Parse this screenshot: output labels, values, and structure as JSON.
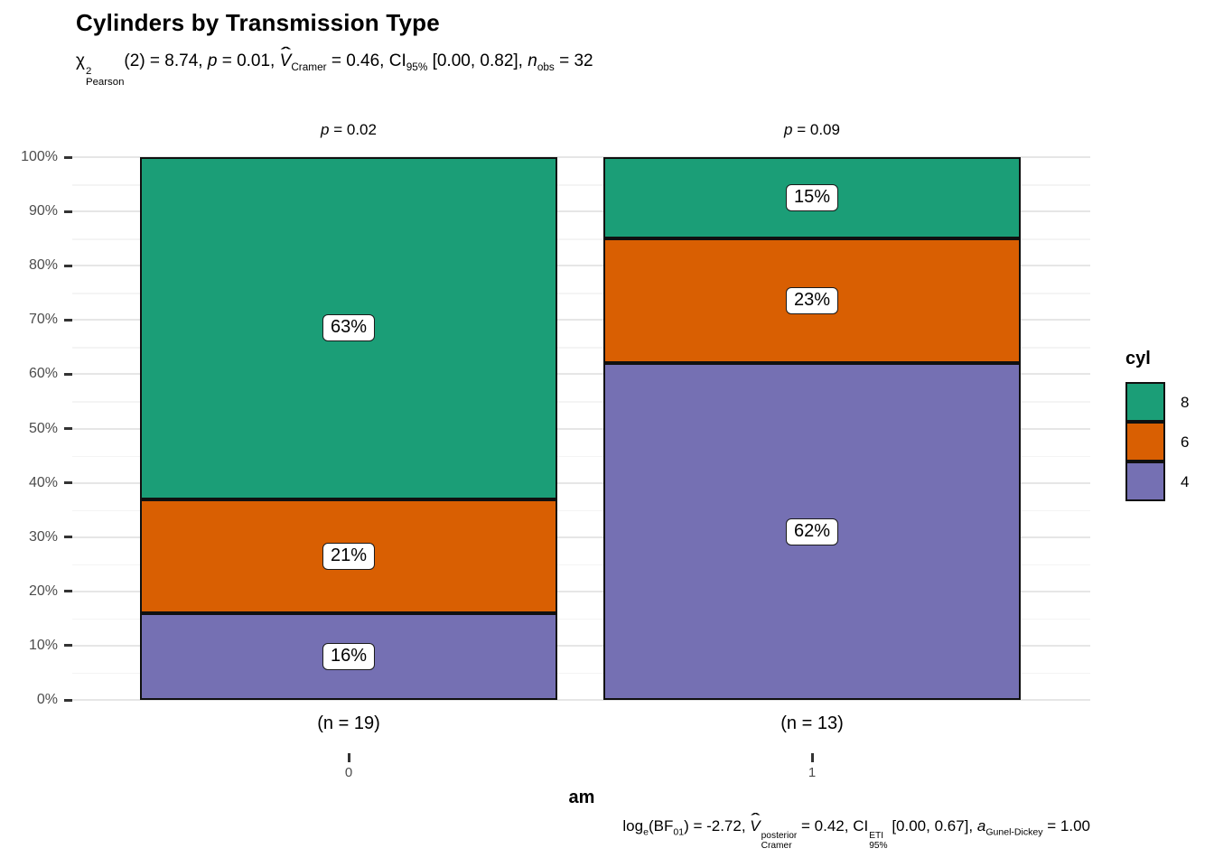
{
  "title": "Cylinders by Transmission Type",
  "subtitle_segments": [
    {
      "t": "χ",
      "sup": "2",
      "sub": "Pearson"
    },
    {
      "t": "(2) = 8.74, "
    },
    {
      "t": "p",
      "i": true
    },
    {
      "t": " = 0.01, "
    },
    {
      "t": "V",
      "i": true,
      "hat": true,
      "sub": "Cramer"
    },
    {
      "t": " = 0.46, CI",
      "sub": "95%"
    },
    {
      "t": " [0.00, 0.82], "
    },
    {
      "t": "n",
      "i": true,
      "sub": "obs"
    },
    {
      "t": " = 32"
    }
  ],
  "caption_segments": [
    {
      "t": "log",
      "sub": "e"
    },
    {
      "t": "(BF",
      "sub": "01"
    },
    {
      "t": ") = -2.72, "
    },
    {
      "t": "V",
      "i": true,
      "hat": true,
      "sup": "posterior",
      "sub": "Cramer"
    },
    {
      "t": " = 0.42, CI",
      "sup": "ETI",
      "sub": "95%"
    },
    {
      "t": " [0.00, 0.67], "
    },
    {
      "t": "a",
      "i": true,
      "sub": "Gunel-Dickey"
    },
    {
      "t": " = 1.00"
    }
  ],
  "colors": {
    "background": "#ffffff",
    "grid_major": "#e6e6e6",
    "grid_minor": "#f4f4f4",
    "axis_text": "#4d4d4d",
    "tick_mark": "#333333",
    "bar_border": "#101010",
    "label_box_bg": "#ffffff",
    "label_box_border": "#1a1a1a"
  },
  "chart_data": {
    "type": "bar",
    "stacked": true,
    "percent": true,
    "title": "Cylinders by Transmission Type",
    "xlabel": "am",
    "ylabel": "",
    "categories": [
      "0",
      "1"
    ],
    "series": [
      {
        "name": "8",
        "color": "#1B9E77",
        "values": [
          63,
          15
        ]
      },
      {
        "name": "6",
        "color": "#D95F02",
        "values": [
          21,
          23
        ]
      },
      {
        "name": "4",
        "color": "#7570B3",
        "values": [
          16,
          62
        ]
      }
    ],
    "value_suffix": "%",
    "ylim": [
      0,
      100
    ],
    "yticks": [
      "0%",
      "10%",
      "20%",
      "30%",
      "40%",
      "50%",
      "60%",
      "70%",
      "80%",
      "90%",
      "100%"
    ],
    "grid": true,
    "legend_title": "cyl",
    "legend_position": "right",
    "n_labels": [
      "(n = 19)",
      "(n = 13)"
    ],
    "p_labels": [
      [
        {
          "t": "p",
          "i": true
        },
        {
          "t": " = 0.02"
        }
      ],
      [
        {
          "t": "p",
          "i": true
        },
        {
          "t": " = 0.09"
        }
      ]
    ]
  }
}
